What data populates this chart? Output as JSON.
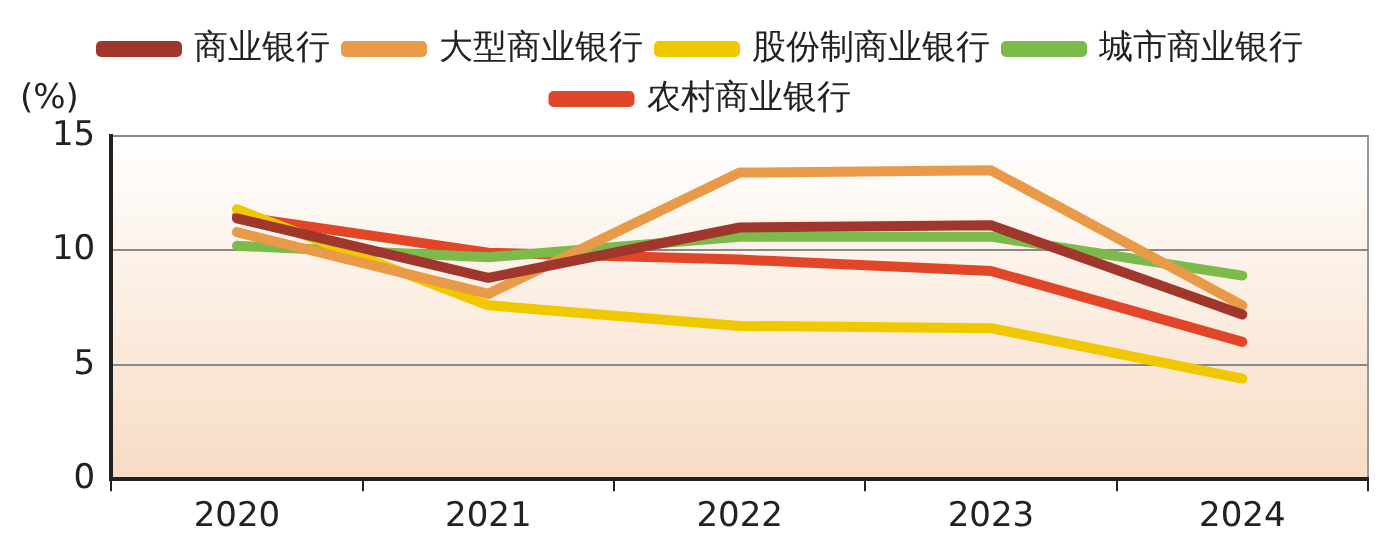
{
  "chart_data": {
    "type": "line",
    "ylabel": "(%)",
    "categories": [
      "2020",
      "2021",
      "2022",
      "2023",
      "2024"
    ],
    "series": [
      {
        "name": "商业银行",
        "color": "#a0372d",
        "values": [
          11.4,
          8.8,
          11.0,
          11.1,
          7.2
        ]
      },
      {
        "name": "大型商业银行",
        "color": "#e89a48",
        "values": [
          10.8,
          8.1,
          13.4,
          13.5,
          7.6
        ]
      },
      {
        "name": "股份制商业银行",
        "color": "#f0c800",
        "values": [
          11.8,
          7.6,
          6.7,
          6.6,
          4.4
        ]
      },
      {
        "name": "城市商业银行",
        "color": "#7cba4c",
        "values": [
          10.2,
          9.7,
          10.6,
          10.6,
          8.9
        ]
      },
      {
        "name": "农村商业银行",
        "color": "#e24628",
        "values": [
          11.5,
          9.9,
          9.6,
          9.1,
          6.0
        ]
      }
    ],
    "ylim": [
      0,
      15
    ],
    "yticks": [
      0,
      5,
      10,
      15
    ],
    "grid": "y",
    "legend": "top",
    "marker": "none",
    "line_style": "solid"
  }
}
